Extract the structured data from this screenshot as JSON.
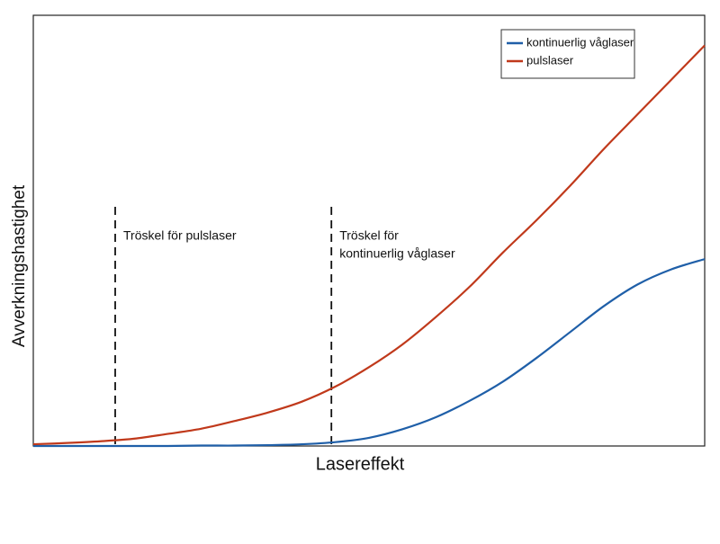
{
  "chart_data": {
    "type": "line",
    "xlabel": "Lasereffekt",
    "ylabel": "Avverkningshastighet",
    "xlim": [
      0,
      100
    ],
    "ylim": [
      0,
      100
    ],
    "x": [
      0,
      5,
      10,
      15,
      20,
      25,
      30,
      35,
      40,
      45,
      50,
      55,
      60,
      65,
      70,
      75,
      80,
      85,
      90,
      95,
      100
    ],
    "series": [
      {
        "name": "kontinuerlig våglaser",
        "color": "#1f5fa8",
        "values": [
          0,
          0,
          0,
          0,
          0,
          0.1,
          0.1,
          0.2,
          0.4,
          0.9,
          1.9,
          3.9,
          6.7,
          10.5,
          15,
          20.5,
          26.5,
          32.5,
          37.5,
          41,
          43.4
        ]
      },
      {
        "name": "pulslaser",
        "color": "#c0391b",
        "values": [
          0.4,
          0.7,
          1.1,
          1.7,
          2.8,
          4.0,
          5.8,
          7.8,
          10.3,
          13.8,
          18.3,
          23.6,
          30,
          37,
          45,
          52.5,
          60.5,
          69,
          77,
          85,
          93
        ]
      }
    ],
    "thresholds": [
      {
        "x": 12.2,
        "label_lines": [
          "Tröskel för pulslaser"
        ]
      },
      {
        "x": 44.4,
        "label_lines": [
          "Tröskel för",
          "kontinuerlig våglaser"
        ]
      }
    ],
    "legend": "upper right"
  }
}
